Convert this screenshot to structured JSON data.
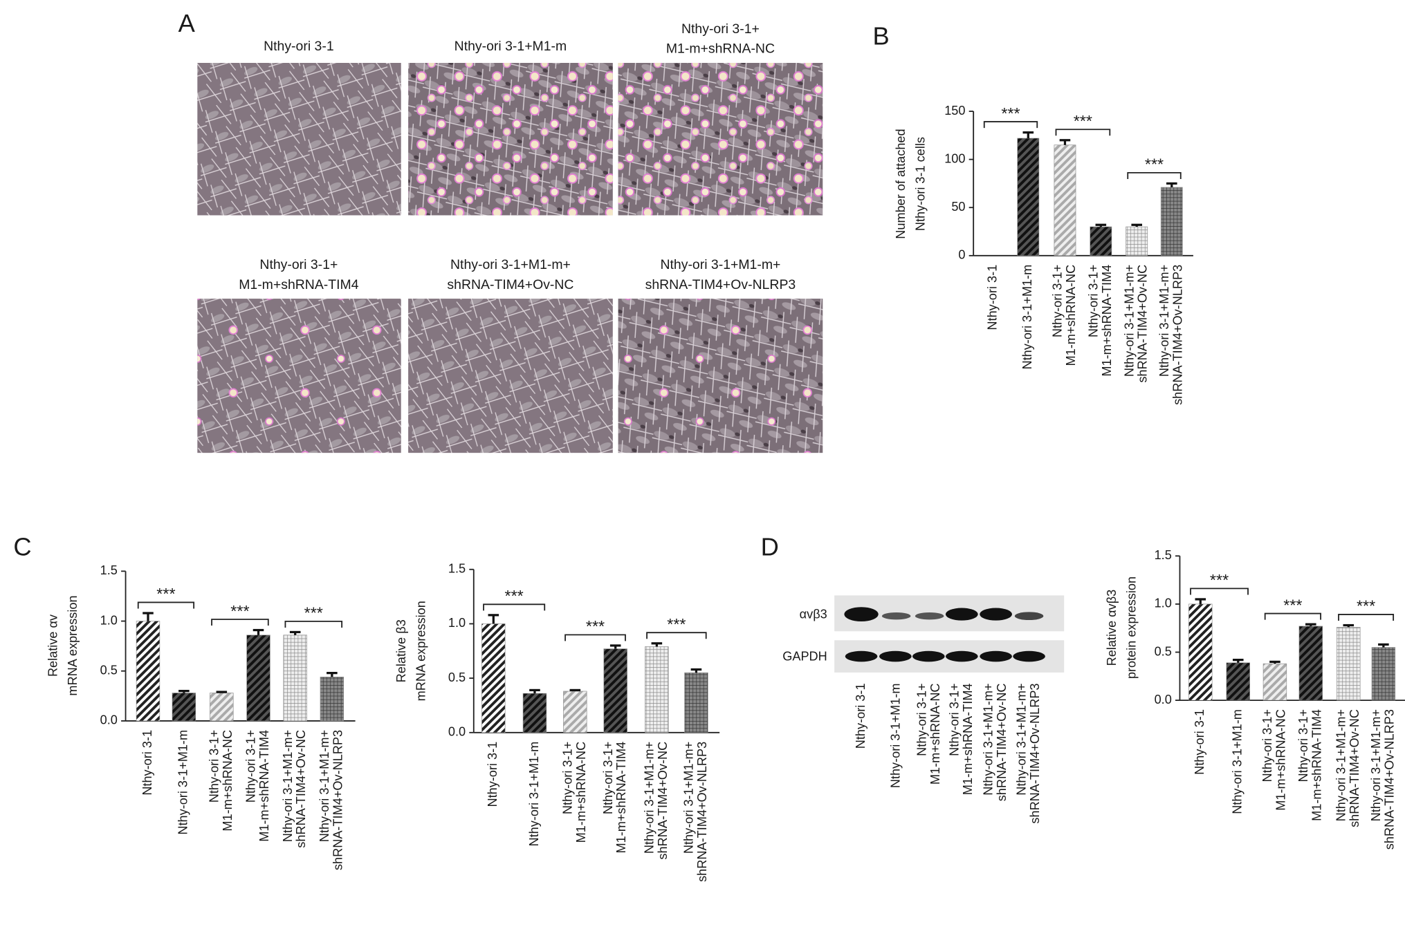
{
  "panel_labels": [
    "A",
    "B",
    "C",
    "D"
  ],
  "micrographs": {
    "captions": [
      [
        "Nthy-ori 3-1"
      ],
      [
        "Nthy-ori 3-1+M1-m"
      ],
      [
        "Nthy-ori 3-1+",
        "M1-m+shRNA-NC"
      ],
      [
        "Nthy-ori 3-1+",
        "M1-m+shRNA-TIM4"
      ],
      [
        "Nthy-ori 3-1+M1-m+",
        "shRNA-TIM4+Ov-NC"
      ],
      [
        "Nthy-ori 3-1+M1-m+",
        "shRNA-TIM4+Ov-NLRP3"
      ]
    ]
  },
  "blot": {
    "rows": [
      "αvβ3",
      "GAPDH"
    ],
    "lanes": [
      [
        "Nthy-ori 3-1"
      ],
      [
        "Nthy-ori 3-1+M1-m"
      ],
      [
        "Nthy-ori 3-1+",
        "M1-m+shRNA-NC"
      ],
      [
        "Nthy-ori 3-1+",
        "M1-m+shRNA-TIM4"
      ],
      [
        "Nthy-ori 3-1+M1-m+",
        "shRNA-TIM4+Ov-NC"
      ],
      [
        "Nthy-ori 3-1+M1-m+",
        "shRNA-TIM4+Ov-NLRP3"
      ]
    ]
  },
  "chart_data": [
    {
      "type": "bar",
      "ylabel": [
        "Number of attached",
        "Nthy-ori 3-1 cells"
      ],
      "categories": [
        [
          "Nthy-ori 3-1"
        ],
        [
          "Nthy-ori 3-1+M1-m"
        ],
        [
          "Nthy-ori 3-1+",
          "M1-m+shRNA-NC"
        ],
        [
          "Nthy-ori 3-1+",
          "M1-m+shRNA-TIM4"
        ],
        [
          "Nthy-ori 3-1+M1-m+",
          "shRNA-TIM4+Ov-NC"
        ],
        [
          "Nthy-ori 3-1+M1-m+",
          "shRNA-TIM4+Ov-NLRP3"
        ]
      ],
      "values": [
        0,
        122,
        115,
        30,
        30,
        71
      ],
      "errors": [
        0,
        6,
        5,
        2,
        2,
        4
      ],
      "patterns": [
        "hatch-dense",
        "hatch-dark",
        "hatch-light",
        "hatch-dark",
        "grid",
        "grid-dark"
      ],
      "ylim": [
        0,
        150
      ],
      "yticks": [
        0,
        50,
        100,
        150
      ],
      "comparisons": [
        {
          "label": "***",
          "pair": [
            0,
            1
          ]
        },
        {
          "label": "***",
          "pair": [
            2,
            3
          ]
        },
        {
          "label": "***",
          "pair": [
            4,
            5
          ]
        }
      ]
    },
    {
      "type": "bar",
      "ylabel": [
        "Relative αv",
        "mRNA expression"
      ],
      "categories": [
        [
          "Nthy-ori 3-1"
        ],
        [
          "Nthy-ori 3-1+M1-m"
        ],
        [
          "Nthy-ori 3-1+",
          "M1-m+shRNA-NC"
        ],
        [
          "Nthy-ori 3-1+",
          "M1-m+shRNA-TIM4"
        ],
        [
          "Nthy-ori 3-1+M1-m+",
          "shRNA-TIM4+Ov-NC"
        ],
        [
          "Nthy-ori 3-1+M1-m+",
          "shRNA-TIM4+Ov-NLRP3"
        ]
      ],
      "values": [
        1.0,
        0.28,
        0.28,
        0.86,
        0.86,
        0.44
      ],
      "errors": [
        0.08,
        0.02,
        0.01,
        0.05,
        0.03,
        0.04
      ],
      "patterns": [
        "hatch-dense",
        "hatch-dark",
        "hatch-light",
        "hatch-dark",
        "grid",
        "grid-dark"
      ],
      "ylim": [
        0,
        1.5
      ],
      "yticks": [
        {
          "value": 0,
          "label": "0.0"
        },
        0.5,
        {
          "value": 1,
          "label": "1.0"
        },
        1.5
      ],
      "comparisons": [
        {
          "label": "***",
          "pair": [
            0,
            1
          ]
        },
        {
          "label": "***",
          "pair": [
            2,
            3
          ]
        },
        {
          "label": "***",
          "pair": [
            4,
            5
          ]
        }
      ]
    },
    {
      "type": "bar",
      "ylabel": [
        "Relative β3",
        "mRNA expression"
      ],
      "categories": [
        [
          "Nthy-ori 3-1"
        ],
        [
          "Nthy-ori 3-1+M1-m"
        ],
        [
          "Nthy-ori 3-1+",
          "M1-m+shRNA-NC"
        ],
        [
          "Nthy-ori 3-1+",
          "M1-m+shRNA-TIM4"
        ],
        [
          "Nthy-ori 3-1+M1-m+",
          "shRNA-TIM4+Ov-NC"
        ],
        [
          "Nthy-ori 3-1+M1-m+",
          "shRNA-TIM4+Ov-NLRP3"
        ]
      ],
      "values": [
        1.0,
        0.36,
        0.38,
        0.77,
        0.79,
        0.55
      ],
      "errors": [
        0.08,
        0.03,
        0.01,
        0.03,
        0.03,
        0.03
      ],
      "patterns": [
        "hatch-dense",
        "hatch-dark",
        "hatch-light",
        "hatch-dark",
        "grid",
        "grid-dark"
      ],
      "ylim": [
        0,
        1.5
      ],
      "yticks": [
        {
          "value": 0,
          "label": "0.0"
        },
        0.5,
        {
          "value": 1,
          "label": "1.0"
        },
        1.5
      ],
      "comparisons": [
        {
          "label": "***",
          "pair": [
            0,
            1
          ]
        },
        {
          "label": "***",
          "pair": [
            2,
            3
          ]
        },
        {
          "label": "***",
          "pair": [
            4,
            5
          ]
        }
      ]
    },
    {
      "type": "bar",
      "ylabel": [
        "Relative αvβ3",
        "protein expression"
      ],
      "categories": [
        [
          "Nthy-ori 3-1"
        ],
        [
          "Nthy-ori 3-1+M1-m"
        ],
        [
          "Nthy-ori 3-1+",
          "M1-m+shRNA-NC"
        ],
        [
          "Nthy-ori 3-1+",
          "M1-m+shRNA-TIM4"
        ],
        [
          "Nthy-ori 3-1+M1-m+",
          "shRNA-TIM4+Ov-NC"
        ],
        [
          "Nthy-ori 3-1+M1-m+",
          "shRNA-TIM4+Ov-NLRP3"
        ]
      ],
      "values": [
        1.0,
        0.39,
        0.38,
        0.77,
        0.76,
        0.55
      ],
      "errors": [
        0.05,
        0.03,
        0.02,
        0.02,
        0.02,
        0.03
      ],
      "patterns": [
        "hatch-dense",
        "hatch-dark",
        "hatch-light",
        "hatch-dark",
        "grid",
        "grid-dark"
      ],
      "ylim": [
        0,
        1.5
      ],
      "yticks": [
        {
          "value": 0,
          "label": "0.0"
        },
        0.5,
        {
          "value": 1,
          "label": "1.0"
        },
        1.5
      ],
      "comparisons": [
        {
          "label": "***",
          "pair": [
            0,
            1
          ]
        },
        {
          "label": "***",
          "pair": [
            2,
            3
          ]
        },
        {
          "label": "***",
          "pair": [
            4,
            5
          ]
        }
      ]
    }
  ]
}
